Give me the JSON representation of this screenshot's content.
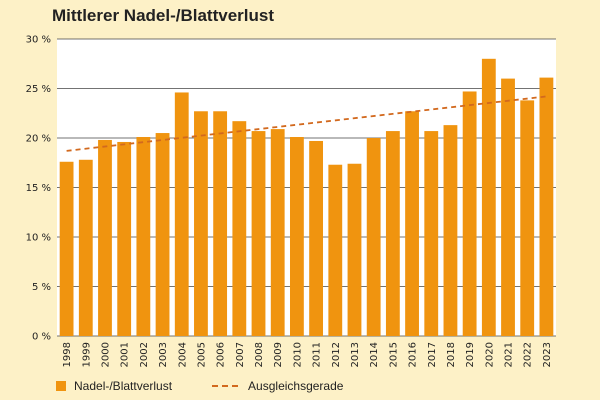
{
  "title": "Mittlerer Nadel-/Blattverlust",
  "colors": {
    "bar": "#f0940f",
    "trend": "#d2691e",
    "background": "#fdf1c7",
    "plot": "#ffffff",
    "grid": "#444444"
  },
  "legend": {
    "bar_label": "Nadel-/Blattverlust",
    "trend_label": "Ausgleichsgerade"
  },
  "chart_data": {
    "type": "bar",
    "title": "Mittlerer Nadel-/Blattverlust",
    "xlabel": "",
    "ylabel": "",
    "ylim": [
      0,
      30
    ],
    "yticks": [
      "0 %",
      "5 %",
      "10 %",
      "15 %",
      "20 %",
      "25 %",
      "30 %"
    ],
    "yticks_values": [
      0,
      5,
      10,
      15,
      20,
      25,
      30
    ],
    "grid": true,
    "legend_position": "bottom",
    "categories": [
      "1998",
      "1999",
      "2000",
      "2001",
      "2002",
      "2003",
      "2004",
      "2005",
      "2006",
      "2007",
      "2008",
      "2009",
      "2010",
      "2011",
      "2012",
      "2013",
      "2014",
      "2015",
      "2016",
      "2017",
      "2018",
      "2019",
      "2020",
      "2021",
      "2022",
      "2023"
    ],
    "series": [
      {
        "name": "Nadel-/Blattverlust",
        "type": "bar",
        "values": [
          17.6,
          17.8,
          19.8,
          19.6,
          20.1,
          20.5,
          24.6,
          22.7,
          22.7,
          21.7,
          20.7,
          20.9,
          20.1,
          19.7,
          17.3,
          17.4,
          20.0,
          20.7,
          22.7,
          20.7,
          21.3,
          24.7,
          28.0,
          26.0,
          23.8,
          26.1
        ]
      },
      {
        "name": "Ausgleichsgerade",
        "type": "line",
        "style": "dashed",
        "start_value": 18.7,
        "end_value": 24.2
      }
    ]
  }
}
